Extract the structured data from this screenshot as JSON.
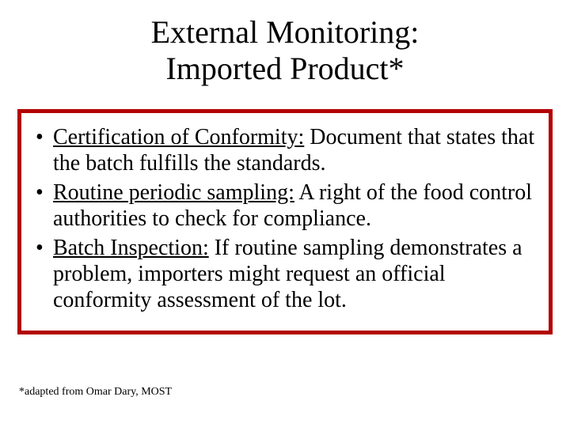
{
  "title": {
    "line1": "External Monitoring:",
    "line2_pre": "Imported Product",
    "line2_ast": "*",
    "fontsize": 40
  },
  "box": {
    "border_color": "#b30000",
    "border_width": 5,
    "background": "#ffffff"
  },
  "bullets": [
    {
      "term": "Certification of Conformity:",
      "rest": " Document that states that the batch fulfills the standards."
    },
    {
      "term": "Routine periodic sampling:",
      "rest": " A right of the food control authorities to check for compliance."
    },
    {
      "term": "Batch Inspection:",
      "rest": " If routine sampling demonstrates a problem, importers might request an official conformity assessment of the lot."
    }
  ],
  "footnote": "*adapted from Omar Dary, MOST",
  "colors": {
    "text": "#000000",
    "background": "#ffffff"
  }
}
